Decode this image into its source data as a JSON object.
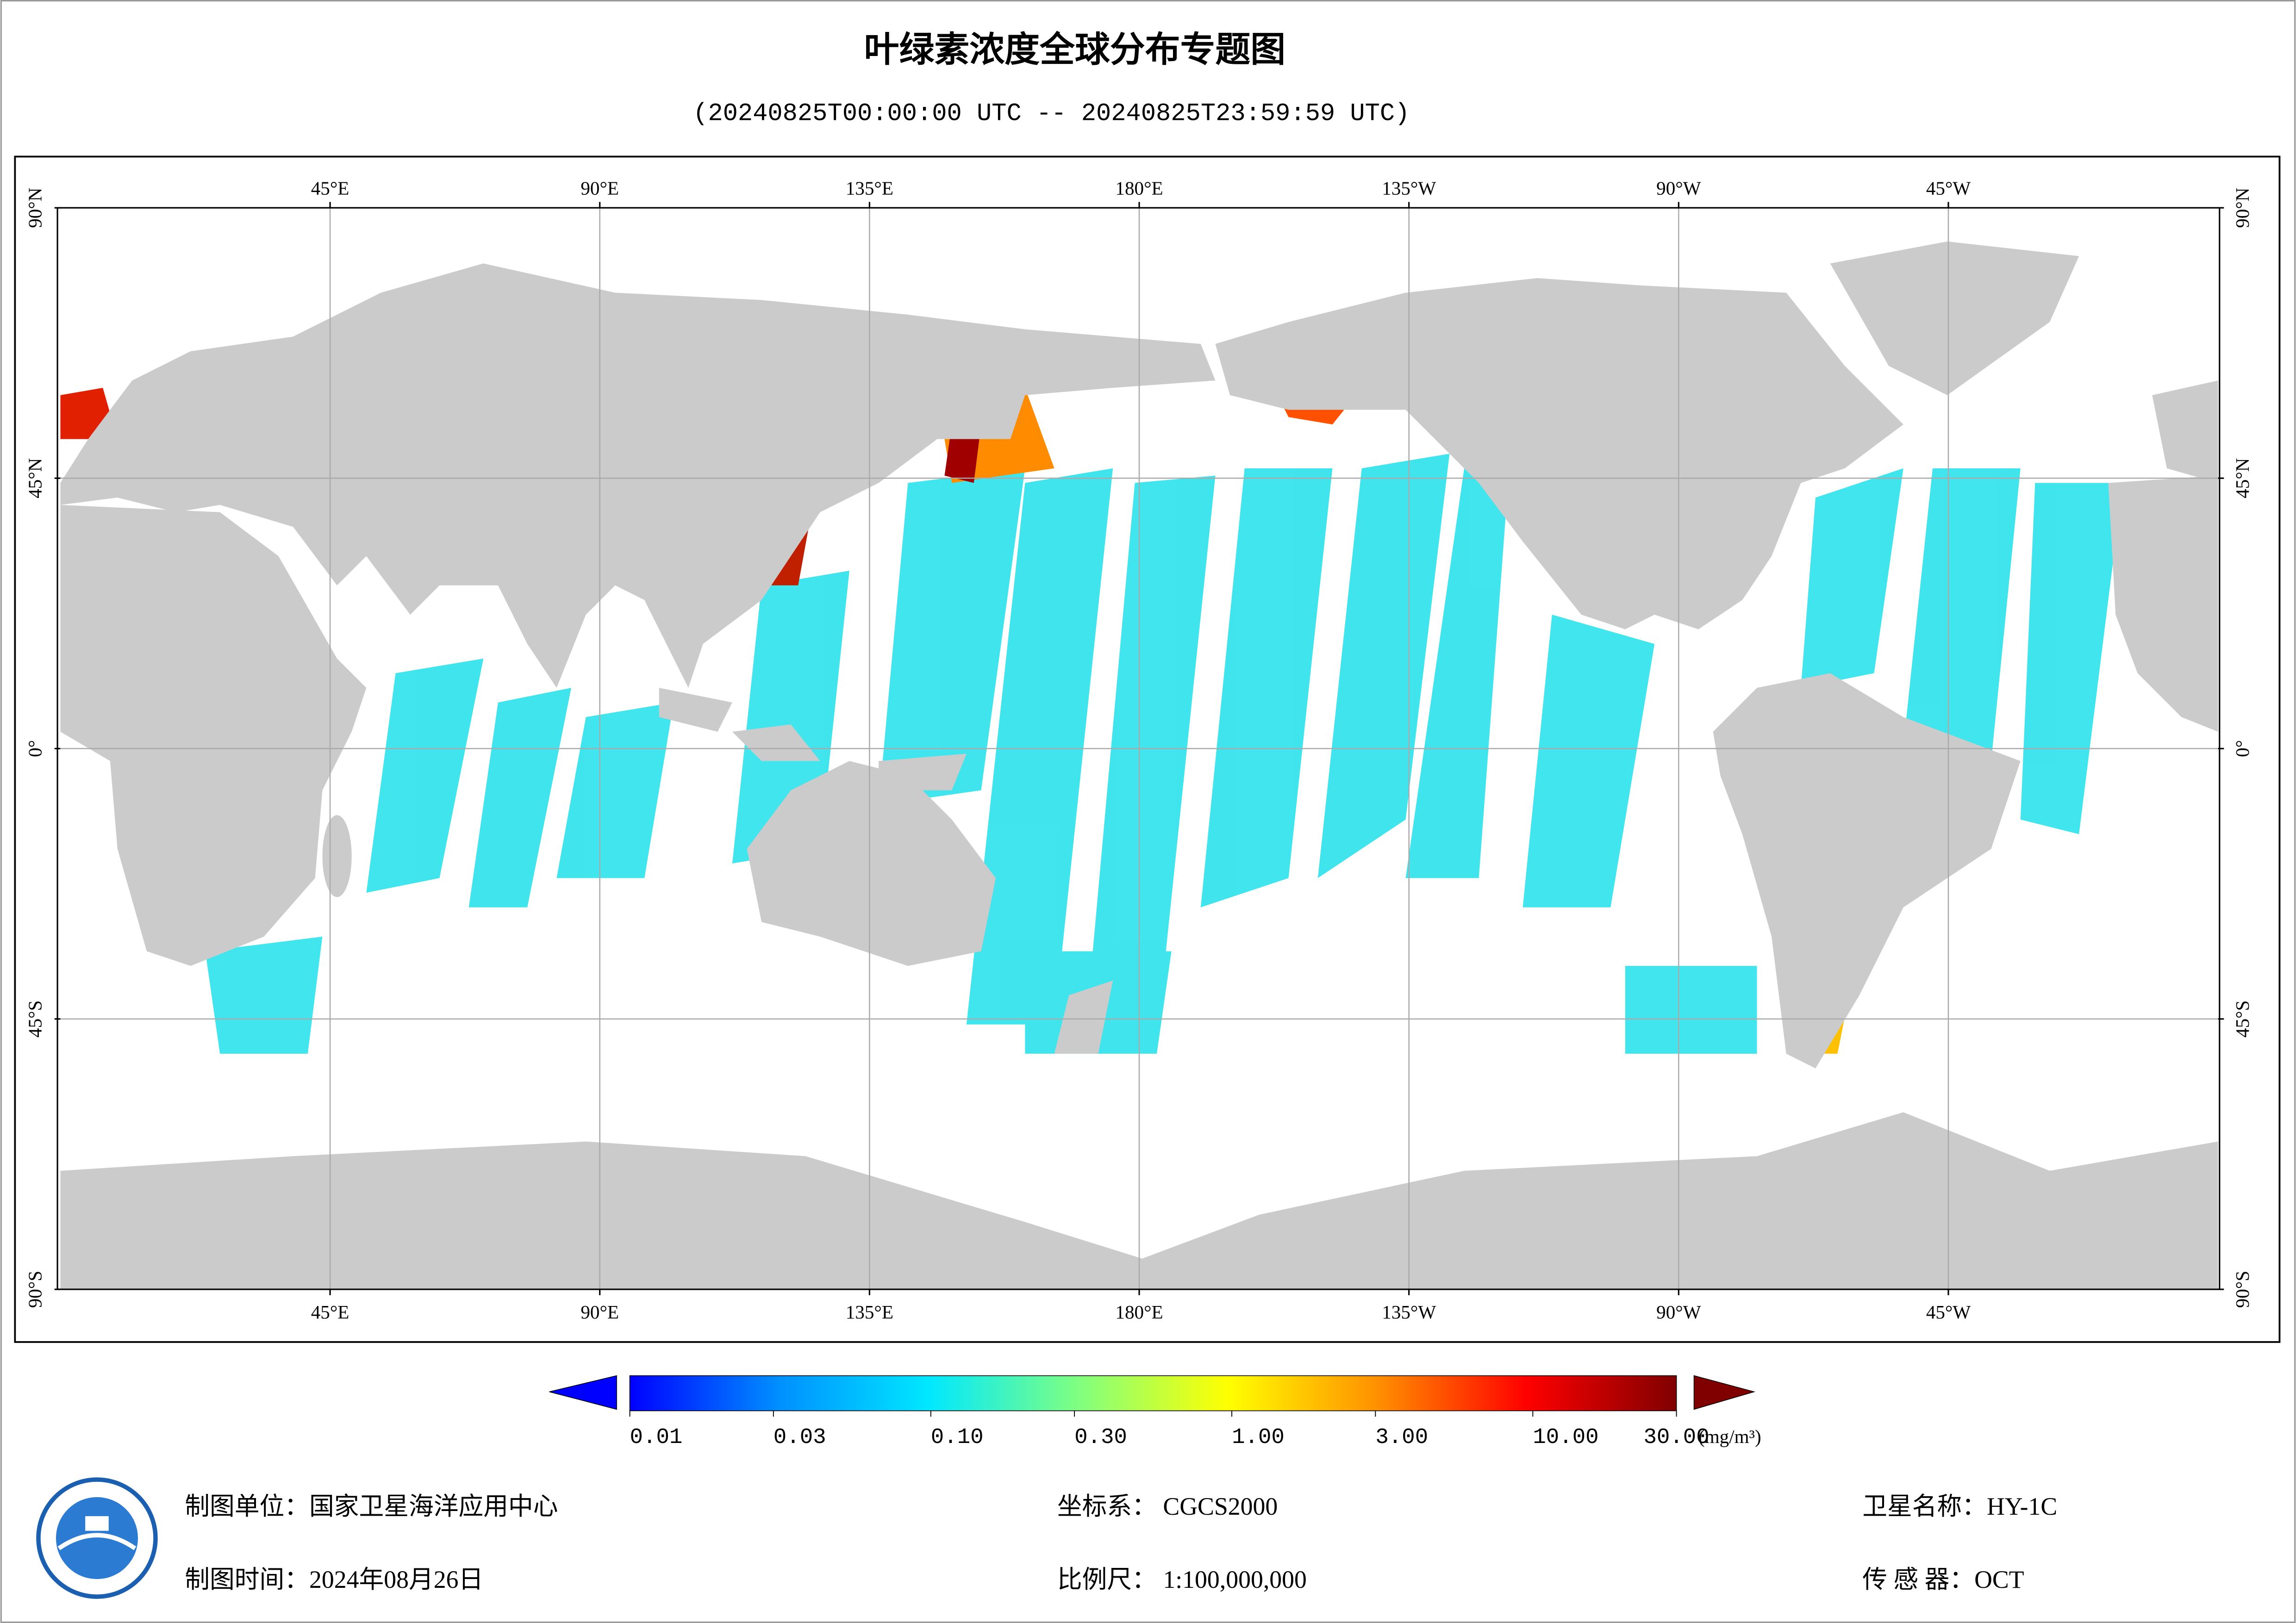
{
  "title": "叶绿素浓度全球分布专题图",
  "subtitle": "(20240825T00:00:00 UTC -- 20240825T23:59:59 UTC)",
  "map": {
    "lonlim": [
      0,
      360
    ],
    "lon_ticks": [
      {
        "value": 45,
        "label": "45°E"
      },
      {
        "value": 90,
        "label": "90°E"
      },
      {
        "value": 135,
        "label": "135°E"
      },
      {
        "value": 180,
        "label": "180°E"
      },
      {
        "value": -135,
        "label": "135°W"
      },
      {
        "value": -90,
        "label": "90°W"
      },
      {
        "value": -45,
        "label": "45°W"
      }
    ],
    "lat_ticks": [
      {
        "value": 90,
        "label": "90°N"
      },
      {
        "value": 45,
        "label": "45°N"
      },
      {
        "value": 0,
        "label": "0°"
      },
      {
        "value": -45,
        "label": "45°S"
      },
      {
        "value": -90,
        "label": "90°S"
      }
    ],
    "grid": true
  },
  "colorbar": {
    "range": [
      0.01,
      30
    ],
    "log": true,
    "ticks": [
      0.01,
      0.03,
      {
        "value": 0.1,
        "label": "0.10"
      },
      {
        "value": 0.3,
        "label": "0.30"
      },
      {
        "value": 1,
        "label": "1.00"
      },
      {
        "value": 3,
        "label": "3.00"
      },
      {
        "value": 10,
        "label": "10.00"
      },
      {
        "value": 30,
        "label": "30.00"
      }
    ],
    "unit": "(mg/m³)",
    "colors": [
      "#0000ff",
      "#0090ff",
      "#00e8ff",
      "#80ff80",
      "#ffff00",
      "#ff9000",
      "#ff0000",
      "#800000"
    ]
  },
  "footer": {
    "unit": "制图单位：国家卫星海洋应用中心",
    "time": "制图时间：2024年08月26日",
    "crs": "坐标系： CGCS2000",
    "scale": "比例尺： 1:100,000,000",
    "satellite": "卫星名称：HY-1C",
    "sensor": "传 感 器：OCT"
  }
}
